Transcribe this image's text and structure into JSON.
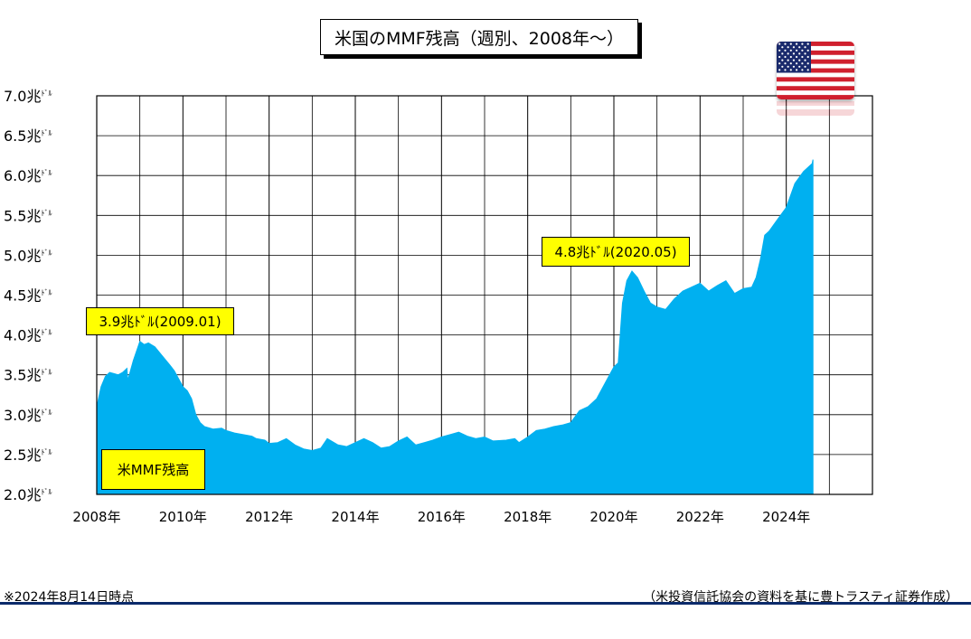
{
  "title": "米国のMMF残高（週別、2008年～）",
  "chart_data": {
    "type": "area",
    "ylim": [
      2.0,
      7.0
    ],
    "y_ticks": [
      2.0,
      2.5,
      3.0,
      3.5,
      4.0,
      4.5,
      5.0,
      5.5,
      6.0,
      6.5,
      7.0
    ],
    "y_tick_unit": "兆",
    "y_tick_unit_sup": "ﾄﾞﾙ",
    "xlim": [
      2008,
      2026
    ],
    "x_ticks": [
      2008,
      2010,
      2012,
      2014,
      2016,
      2018,
      2020,
      2022,
      2024
    ],
    "x_tick_suffix": "年",
    "grid": true,
    "fill_color": "#00b0f0",
    "series": [
      {
        "name": "米MMF残高",
        "points": [
          [
            2008.0,
            3.1
          ],
          [
            2008.1,
            3.35
          ],
          [
            2008.2,
            3.48
          ],
          [
            2008.3,
            3.53
          ],
          [
            2008.5,
            3.5
          ],
          [
            2008.6,
            3.53
          ],
          [
            2008.7,
            3.58
          ],
          [
            2008.72,
            3.43
          ],
          [
            2008.85,
            3.68
          ],
          [
            2009.0,
            3.92
          ],
          [
            2009.1,
            3.88
          ],
          [
            2009.2,
            3.9
          ],
          [
            2009.35,
            3.85
          ],
          [
            2009.5,
            3.75
          ],
          [
            2009.7,
            3.62
          ],
          [
            2009.8,
            3.55
          ],
          [
            2009.9,
            3.45
          ],
          [
            2010.0,
            3.35
          ],
          [
            2010.1,
            3.3
          ],
          [
            2010.2,
            3.2
          ],
          [
            2010.3,
            3.0
          ],
          [
            2010.4,
            2.9
          ],
          [
            2010.5,
            2.85
          ],
          [
            2010.7,
            2.82
          ],
          [
            2010.9,
            2.83
          ],
          [
            2011.0,
            2.8
          ],
          [
            2011.2,
            2.77
          ],
          [
            2011.4,
            2.75
          ],
          [
            2011.6,
            2.73
          ],
          [
            2011.7,
            2.7
          ],
          [
            2011.9,
            2.68
          ],
          [
            2012.0,
            2.64
          ],
          [
            2012.2,
            2.65
          ],
          [
            2012.4,
            2.7
          ],
          [
            2012.6,
            2.62
          ],
          [
            2012.8,
            2.57
          ],
          [
            2013.0,
            2.55
          ],
          [
            2013.2,
            2.58
          ],
          [
            2013.35,
            2.7
          ],
          [
            2013.6,
            2.62
          ],
          [
            2013.8,
            2.6
          ],
          [
            2014.0,
            2.65
          ],
          [
            2014.2,
            2.7
          ],
          [
            2014.4,
            2.65
          ],
          [
            2014.6,
            2.58
          ],
          [
            2014.8,
            2.6
          ],
          [
            2015.0,
            2.67
          ],
          [
            2015.2,
            2.72
          ],
          [
            2015.4,
            2.62
          ],
          [
            2015.6,
            2.65
          ],
          [
            2015.8,
            2.68
          ],
          [
            2016.0,
            2.72
          ],
          [
            2016.2,
            2.75
          ],
          [
            2016.4,
            2.78
          ],
          [
            2016.6,
            2.73
          ],
          [
            2016.8,
            2.7
          ],
          [
            2017.0,
            2.72
          ],
          [
            2017.2,
            2.67
          ],
          [
            2017.5,
            2.68
          ],
          [
            2017.7,
            2.7
          ],
          [
            2017.8,
            2.65
          ],
          [
            2018.0,
            2.72
          ],
          [
            2018.2,
            2.8
          ],
          [
            2018.4,
            2.82
          ],
          [
            2018.6,
            2.85
          ],
          [
            2018.8,
            2.87
          ],
          [
            2019.0,
            2.9
          ],
          [
            2019.2,
            3.05
          ],
          [
            2019.4,
            3.1
          ],
          [
            2019.6,
            3.2
          ],
          [
            2019.8,
            3.4
          ],
          [
            2020.0,
            3.6
          ],
          [
            2020.1,
            3.65
          ],
          [
            2020.2,
            4.4
          ],
          [
            2020.3,
            4.68
          ],
          [
            2020.42,
            4.8
          ],
          [
            2020.55,
            4.72
          ],
          [
            2020.7,
            4.55
          ],
          [
            2020.85,
            4.4
          ],
          [
            2021.0,
            4.35
          ],
          [
            2021.2,
            4.32
          ],
          [
            2021.4,
            4.45
          ],
          [
            2021.6,
            4.55
          ],
          [
            2021.8,
            4.6
          ],
          [
            2022.0,
            4.65
          ],
          [
            2022.2,
            4.55
          ],
          [
            2022.4,
            4.62
          ],
          [
            2022.6,
            4.68
          ],
          [
            2022.8,
            4.52
          ],
          [
            2023.0,
            4.58
          ],
          [
            2023.2,
            4.6
          ],
          [
            2023.3,
            4.72
          ],
          [
            2023.4,
            4.95
          ],
          [
            2023.5,
            5.25
          ],
          [
            2023.6,
            5.3
          ],
          [
            2023.8,
            5.45
          ],
          [
            2024.0,
            5.6
          ],
          [
            2024.2,
            5.9
          ],
          [
            2024.4,
            6.05
          ],
          [
            2024.6,
            6.15
          ],
          [
            2024.62,
            6.2
          ]
        ]
      }
    ],
    "annotations": [
      {
        "text": "3.9兆ﾄﾞﾙ(2009.01)",
        "x": 2009.0,
        "y": 3.9
      },
      {
        "text": "4.8兆ﾄﾞﾙ(2020.05)",
        "x": 2020.4,
        "y": 4.8
      }
    ],
    "legend_label": "米MMF残高"
  },
  "flag_icon": "us-flag-icon",
  "footer": {
    "note": "※2024年8月14日時点",
    "source": "（米投資信託協会の資料を基に豊トラスティ証券作成）"
  }
}
